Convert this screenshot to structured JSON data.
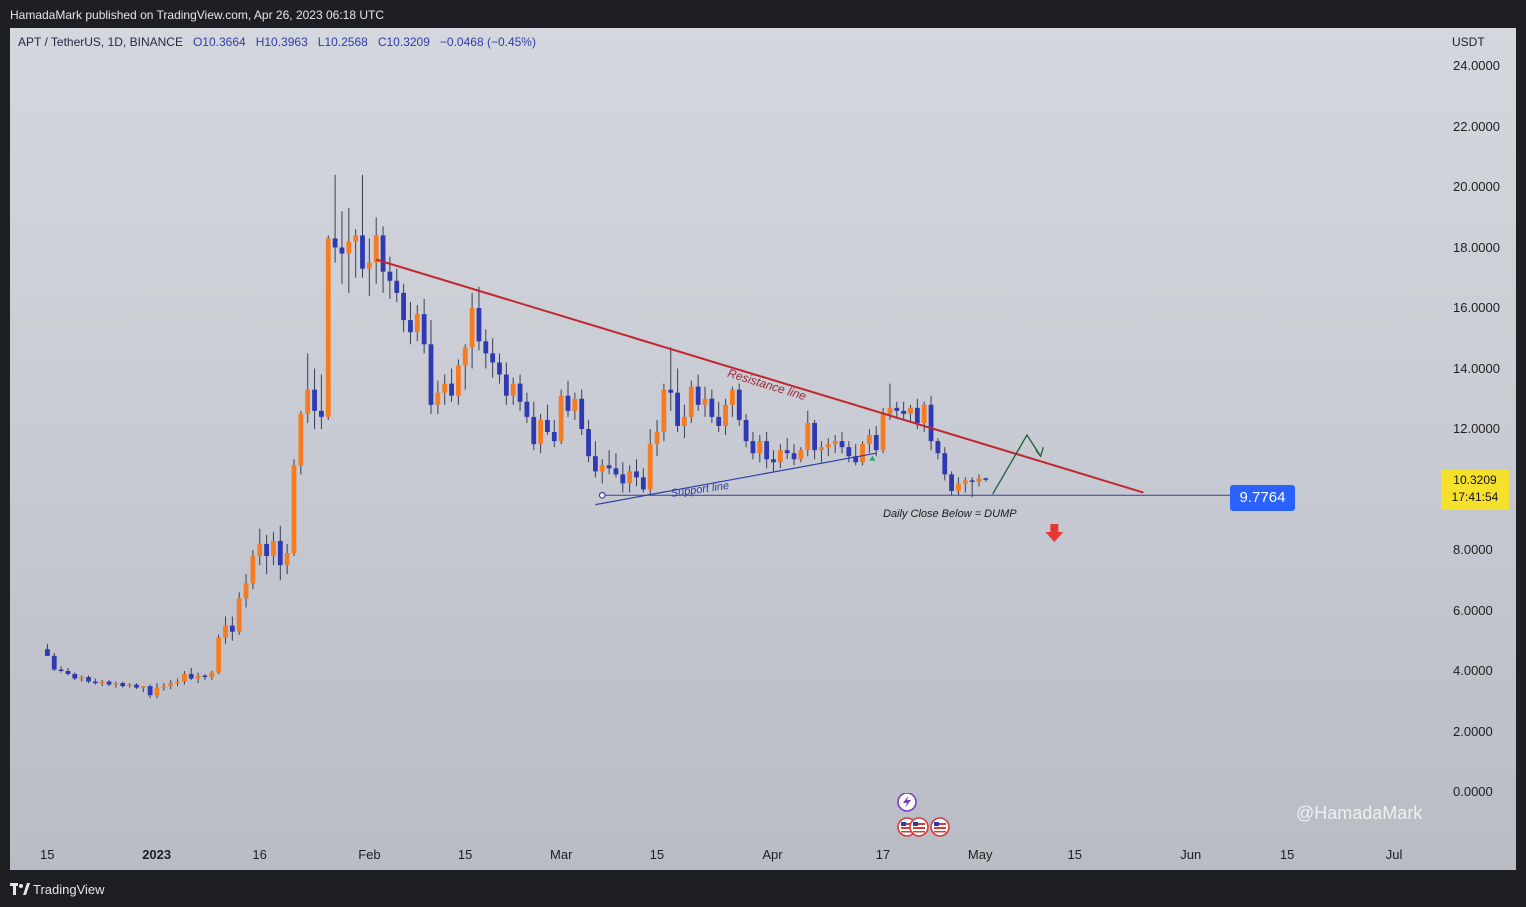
{
  "header": {
    "published": "HamadaMark published on TradingView.com, Apr 26, 2023 06:18 UTC"
  },
  "symbol": {
    "name": "APT / TetherUS, 1D, BINANCE",
    "open": "O10.3664",
    "high": "H10.3963",
    "low": "L10.2568",
    "close": "C10.3209",
    "change": "−0.0468 (−0.45%)"
  },
  "price_axis": {
    "unit": "USDT"
  },
  "last_price": {
    "value": "10.3209",
    "countdown": "17:41:54"
  },
  "level_label": "9.7764",
  "annotations": {
    "resistance": "Resistance line",
    "support": "Support line",
    "dump": "Daily Close Below = DUMP"
  },
  "watermark": "@HamadaMark",
  "footer": {
    "brand": "TradingView"
  },
  "colors": {
    "up": "#f57c20",
    "down": "#2f3ab2",
    "resistance": "#c0282d",
    "support": "#2e3ea8",
    "level": "#2962ff",
    "arrow_down": "#e53935",
    "arrow_up": "#1f5e3a"
  },
  "chart_data": {
    "type": "candlestick",
    "symbol": "APT / TetherUS",
    "interval": "1D",
    "exchange": "BINANCE",
    "ylim": [
      -1.0,
      25.0
    ],
    "y_ticks": [
      "24.0000",
      "22.0000",
      "20.0000",
      "18.0000",
      "16.0000",
      "14.0000",
      "12.0000",
      "10.0000",
      "8.0000",
      "6.0000",
      "4.0000",
      "2.0000",
      "0.0000"
    ],
    "x_ticks": [
      {
        "label": "15",
        "day": -16
      },
      {
        "label": "2023",
        "day": 0,
        "bold": true
      },
      {
        "label": "16",
        "day": 15
      },
      {
        "label": "Feb",
        "day": 31
      },
      {
        "label": "15",
        "day": 45
      },
      {
        "label": "Mar",
        "day": 59
      },
      {
        "label": "15",
        "day": 73
      },
      {
        "label": "Apr",
        "day": 90
      },
      {
        "label": "17",
        "day": 106
      },
      {
        "label": "May",
        "day": 120
      },
      {
        "label": "15",
        "day": 134
      },
      {
        "label": "Jun",
        "day": 151
      },
      {
        "label": "15",
        "day": 165
      },
      {
        "label": "Jul",
        "day": 181
      }
    ],
    "candles": [
      [
        -16,
        4.72,
        4.9,
        4.5,
        4.5
      ],
      [
        -15,
        4.5,
        4.6,
        4.0,
        4.05
      ],
      [
        -14,
        4.05,
        4.15,
        3.95,
        4.0
      ],
      [
        -13,
        4.0,
        4.1,
        3.85,
        3.9
      ],
      [
        -12,
        3.9,
        3.95,
        3.7,
        3.75
      ],
      [
        -11,
        3.75,
        3.85,
        3.65,
        3.8
      ],
      [
        -10,
        3.8,
        3.85,
        3.6,
        3.65
      ],
      [
        -9,
        3.65,
        3.75,
        3.55,
        3.6
      ],
      [
        -8,
        3.6,
        3.7,
        3.5,
        3.65
      ],
      [
        -7,
        3.65,
        3.7,
        3.5,
        3.55
      ],
      [
        -6,
        3.55,
        3.65,
        3.45,
        3.6
      ],
      [
        -5,
        3.6,
        3.65,
        3.45,
        3.5
      ],
      [
        -4,
        3.5,
        3.6,
        3.45,
        3.55
      ],
      [
        -3,
        3.55,
        3.6,
        3.4,
        3.45
      ],
      [
        -2,
        3.45,
        3.5,
        3.3,
        3.5
      ],
      [
        -1,
        3.5,
        3.55,
        3.1,
        3.2
      ],
      [
        0,
        3.2,
        3.6,
        3.1,
        3.45
      ],
      [
        1,
        3.45,
        3.6,
        3.35,
        3.5
      ],
      [
        2,
        3.5,
        3.7,
        3.4,
        3.6
      ],
      [
        3,
        3.6,
        3.75,
        3.5,
        3.65
      ],
      [
        4,
        3.65,
        4.0,
        3.55,
        3.9
      ],
      [
        5,
        3.9,
        4.1,
        3.7,
        3.75
      ],
      [
        6,
        3.75,
        3.95,
        3.6,
        3.85
      ],
      [
        7,
        3.85,
        3.9,
        3.7,
        3.8
      ],
      [
        8,
        3.8,
        4.0,
        3.7,
        3.95
      ],
      [
        9,
        3.95,
        5.2,
        3.9,
        5.1
      ],
      [
        10,
        5.1,
        5.8,
        4.9,
        5.5
      ],
      [
        11,
        5.5,
        5.8,
        5.0,
        5.3
      ],
      [
        12,
        5.3,
        6.6,
        5.2,
        6.4
      ],
      [
        13,
        6.4,
        7.2,
        6.1,
        6.9
      ],
      [
        14,
        6.9,
        8.0,
        6.7,
        7.8
      ],
      [
        15,
        7.8,
        8.7,
        7.5,
        8.2
      ],
      [
        16,
        8.2,
        8.5,
        7.2,
        7.8
      ],
      [
        17,
        7.8,
        8.6,
        7.5,
        8.3
      ],
      [
        18,
        8.3,
        8.8,
        7.0,
        7.5
      ],
      [
        19,
        7.5,
        8.2,
        7.2,
        7.9
      ],
      [
        20,
        7.9,
        11.0,
        7.8,
        10.8
      ],
      [
        21,
        10.8,
        12.6,
        10.5,
        12.5
      ],
      [
        22,
        12.5,
        14.5,
        12.2,
        13.3
      ],
      [
        23,
        13.3,
        14.0,
        12.0,
        12.6
      ],
      [
        24,
        12.6,
        13.8,
        12.0,
        12.4
      ],
      [
        25,
        12.4,
        18.4,
        12.3,
        18.3
      ],
      [
        26,
        18.3,
        20.4,
        17.5,
        18.0
      ],
      [
        27,
        18.0,
        19.2,
        16.8,
        17.8
      ],
      [
        28,
        17.8,
        19.3,
        16.5,
        18.2
      ],
      [
        29,
        18.2,
        18.6,
        17.0,
        18.4
      ],
      [
        30,
        18.4,
        20.4,
        17.0,
        17.3
      ],
      [
        31,
        17.3,
        18.3,
        16.4,
        17.5
      ],
      [
        32,
        17.5,
        19.0,
        16.8,
        18.4
      ],
      [
        33,
        18.4,
        18.7,
        16.5,
        17.2
      ],
      [
        34,
        17.2,
        17.7,
        16.3,
        16.9
      ],
      [
        35,
        16.9,
        17.3,
        16.2,
        16.5
      ],
      [
        36,
        16.5,
        16.8,
        15.2,
        15.6
      ],
      [
        37,
        15.6,
        16.2,
        14.8,
        15.2
      ],
      [
        38,
        15.2,
        16.1,
        14.9,
        15.8
      ],
      [
        39,
        15.8,
        16.3,
        14.5,
        14.8
      ],
      [
        40,
        14.8,
        15.6,
        12.5,
        12.8
      ],
      [
        41,
        12.8,
        13.6,
        12.5,
        13.2
      ],
      [
        42,
        13.2,
        13.8,
        12.8,
        13.5
      ],
      [
        43,
        13.5,
        14.0,
        12.9,
        13.1
      ],
      [
        44,
        13.1,
        14.3,
        12.8,
        14.1
      ],
      [
        45,
        14.1,
        14.8,
        13.3,
        14.7
      ],
      [
        46,
        14.7,
        16.5,
        14.0,
        16.0
      ],
      [
        47,
        16.0,
        16.7,
        14.6,
        14.9
      ],
      [
        48,
        14.9,
        15.3,
        14.0,
        14.5
      ],
      [
        49,
        14.5,
        15.0,
        13.7,
        14.2
      ],
      [
        50,
        14.2,
        14.5,
        13.5,
        13.8
      ],
      [
        51,
        13.8,
        14.2,
        12.8,
        13.1
      ],
      [
        52,
        13.1,
        13.7,
        12.8,
        13.5
      ],
      [
        53,
        13.5,
        13.8,
        12.6,
        12.9
      ],
      [
        54,
        12.9,
        13.2,
        12.2,
        12.4
      ],
      [
        55,
        12.4,
        12.9,
        11.3,
        11.5
      ],
      [
        56,
        11.5,
        12.5,
        11.2,
        12.3
      ],
      [
        57,
        12.3,
        12.8,
        11.8,
        11.9
      ],
      [
        58,
        11.9,
        12.3,
        11.4,
        11.6
      ],
      [
        59,
        11.6,
        13.3,
        11.5,
        13.1
      ],
      [
        60,
        13.1,
        13.6,
        12.4,
        12.6
      ],
      [
        61,
        12.6,
        13.2,
        12.3,
        13.0
      ],
      [
        62,
        13.0,
        13.3,
        11.8,
        12.0
      ],
      [
        63,
        12.0,
        12.3,
        10.9,
        11.1
      ],
      [
        64,
        11.1,
        11.6,
        10.4,
        10.6
      ],
      [
        65,
        10.6,
        11.0,
        10.2,
        10.8
      ],
      [
        66,
        10.8,
        11.3,
        10.5,
        10.7
      ],
      [
        67,
        10.7,
        11.2,
        10.4,
        10.5
      ],
      [
        68,
        10.5,
        10.9,
        9.9,
        10.2
      ],
      [
        69,
        10.2,
        10.8,
        9.9,
        10.6
      ],
      [
        70,
        10.6,
        11.0,
        10.1,
        10.4
      ],
      [
        71,
        10.4,
        10.7,
        9.9,
        10.0
      ],
      [
        72,
        10.0,
        12.0,
        9.8,
        11.5
      ],
      [
        73,
        11.5,
        12.3,
        11.1,
        11.9
      ],
      [
        74,
        11.9,
        13.5,
        11.6,
        13.3
      ],
      [
        75,
        13.3,
        14.7,
        12.6,
        13.2
      ],
      [
        76,
        13.2,
        14.0,
        11.9,
        12.1
      ],
      [
        77,
        12.1,
        12.8,
        11.7,
        12.4
      ],
      [
        78,
        12.4,
        13.6,
        12.2,
        13.4
      ],
      [
        79,
        13.4,
        13.8,
        12.6,
        12.8
      ],
      [
        80,
        12.8,
        13.4,
        12.4,
        13.0
      ],
      [
        81,
        13.0,
        13.3,
        12.2,
        12.4
      ],
      [
        82,
        12.4,
        12.9,
        11.9,
        12.1
      ],
      [
        83,
        12.1,
        13.0,
        11.8,
        12.8
      ],
      [
        84,
        12.8,
        13.4,
        12.4,
        13.3
      ],
      [
        85,
        13.3,
        13.5,
        12.1,
        12.3
      ],
      [
        86,
        12.3,
        12.5,
        11.4,
        11.6
      ],
      [
        87,
        11.6,
        11.9,
        11.0,
        11.2
      ],
      [
        88,
        11.2,
        11.8,
        10.9,
        11.6
      ],
      [
        89,
        11.6,
        11.9,
        10.7,
        11.0
      ],
      [
        90,
        11.0,
        11.3,
        10.6,
        10.9
      ],
      [
        91,
        10.9,
        11.5,
        10.7,
        11.3
      ],
      [
        92,
        11.3,
        11.7,
        11.0,
        11.2
      ],
      [
        93,
        11.2,
        11.5,
        10.8,
        11.0
      ],
      [
        94,
        11.0,
        11.4,
        10.9,
        11.3
      ],
      [
        95,
        11.3,
        12.6,
        11.1,
        12.2
      ],
      [
        96,
        12.2,
        12.3,
        11.0,
        11.3
      ],
      [
        97,
        11.3,
        11.6,
        10.9,
        11.4
      ],
      [
        98,
        11.4,
        11.7,
        11.1,
        11.5
      ],
      [
        99,
        11.5,
        11.8,
        11.2,
        11.6
      ],
      [
        100,
        11.6,
        11.9,
        11.2,
        11.4
      ],
      [
        101,
        11.4,
        11.6,
        10.9,
        11.1
      ],
      [
        102,
        11.1,
        11.5,
        10.8,
        10.9
      ],
      [
        103,
        10.9,
        11.6,
        10.8,
        11.5
      ],
      [
        104,
        11.5,
        12.0,
        11.2,
        11.8
      ],
      [
        105,
        11.8,
        12.1,
        11.1,
        11.3
      ],
      [
        106,
        11.3,
        12.7,
        11.2,
        12.5
      ],
      [
        107,
        12.5,
        13.5,
        12.3,
        12.7
      ],
      [
        108,
        12.7,
        12.9,
        12.4,
        12.6
      ],
      [
        109,
        12.6,
        12.9,
        12.3,
        12.5
      ],
      [
        110,
        12.5,
        12.8,
        12.2,
        12.7
      ],
      [
        111,
        12.7,
        13.0,
        12.0,
        12.2
      ],
      [
        112,
        12.2,
        12.9,
        11.9,
        12.8
      ],
      [
        113,
        12.8,
        13.1,
        11.3,
        11.6
      ],
      [
        114,
        11.6,
        11.7,
        11.0,
        11.2
      ],
      [
        115,
        11.2,
        11.4,
        10.3,
        10.5
      ],
      [
        116,
        10.5,
        10.6,
        9.8,
        9.95
      ],
      [
        117,
        9.95,
        10.4,
        9.8,
        10.2
      ],
      [
        118,
        10.2,
        10.4,
        9.9,
        10.3
      ],
      [
        119,
        10.3,
        10.4,
        9.75,
        10.25
      ],
      [
        120,
        10.25,
        10.5,
        10.1,
        10.37
      ],
      [
        121,
        10.37,
        10.4,
        10.26,
        10.32
      ]
    ],
    "lines": {
      "resistance": {
        "from": [
          32,
          17.6
        ],
        "to": [
          144,
          9.9
        ]
      },
      "support": {
        "from": [
          64,
          9.5
        ],
        "to": [
          105,
          11.2
        ]
      },
      "level": {
        "from": [
          65,
          9.8
        ],
        "to": [
          150,
          9.7764
        ]
      }
    }
  }
}
